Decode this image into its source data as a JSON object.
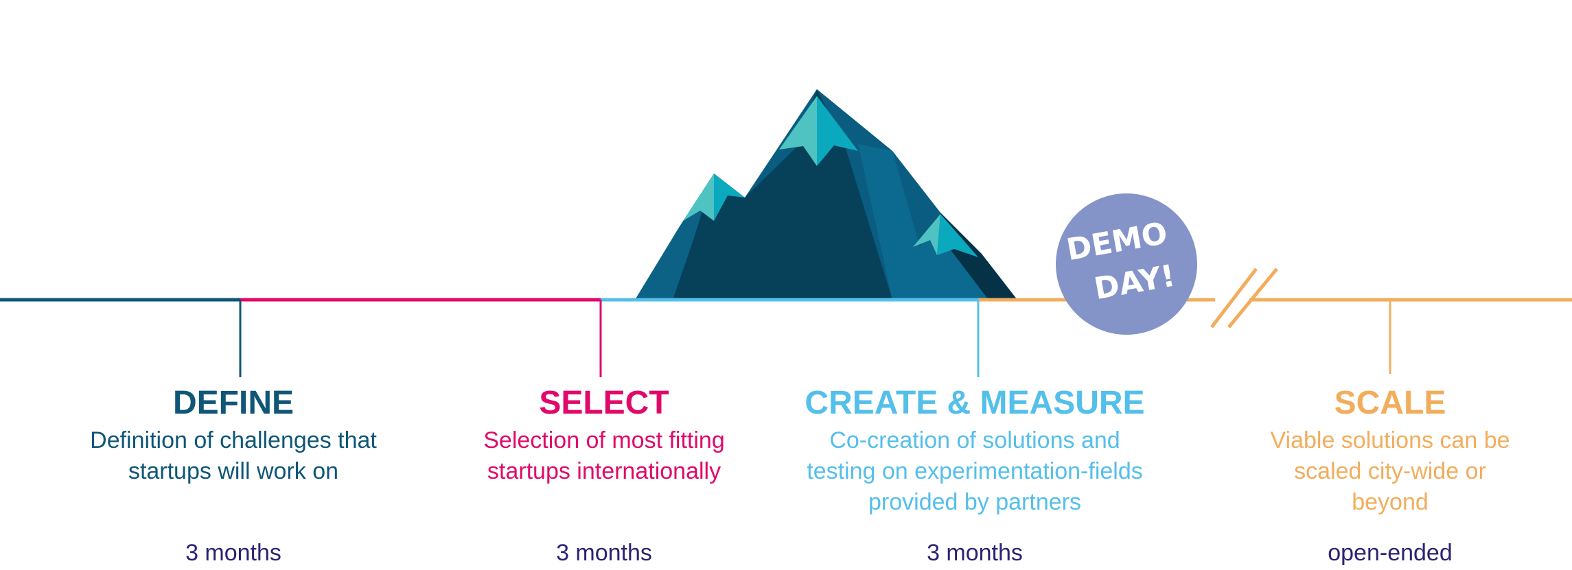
{
  "colors": {
    "define": "#0f5677",
    "select": "#e0096a",
    "create": "#54bfea",
    "scale": "#f2ad5c",
    "duration": "#2a2474",
    "demo_day": "#8494c9",
    "mountain_dark": "#064059",
    "mountain_mid": "#0a5c80",
    "mountain_light": "#0c6a90",
    "snow_light": "#4fc2c2",
    "snow_dark": "#0ba9bd"
  },
  "demo_day": {
    "line1": "DEMO",
    "line2": "DAY!"
  },
  "phases": [
    {
      "title": "DEFINE",
      "description": "Definition of challenges that startups will work on",
      "duration": "3 months"
    },
    {
      "title": "SELECT",
      "description": "Selection of most fitting startups internationally",
      "duration": "3 months"
    },
    {
      "title": "CREATE & MEASURE",
      "description": "Co-creation of solutions and testing on experimentation-fields provided by partners",
      "duration": "3 months"
    },
    {
      "title": "SCALE",
      "description": "Viable solutions can be scaled city-wide or beyond",
      "duration": "open-ended"
    }
  ]
}
